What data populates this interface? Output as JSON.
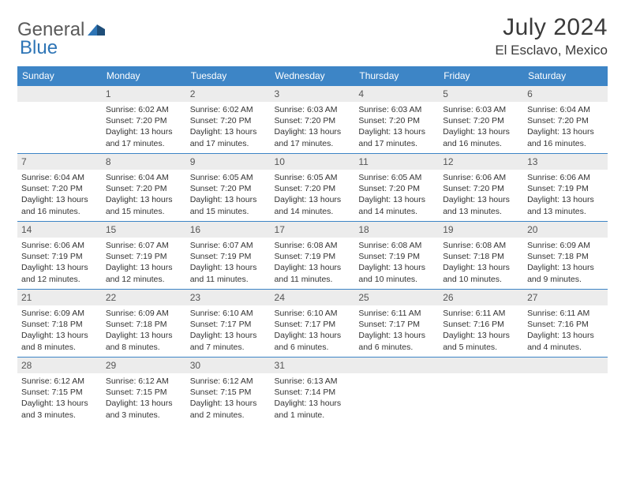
{
  "logo": {
    "general": "General",
    "blue": "Blue"
  },
  "title": "July 2024",
  "location": "El Esclavo, Mexico",
  "weekdays": [
    "Sunday",
    "Monday",
    "Tuesday",
    "Wednesday",
    "Thursday",
    "Friday",
    "Saturday"
  ],
  "colors": {
    "header_bg": "#3d85c6",
    "header_text": "#ffffff",
    "daynum_bg": "#ececec",
    "daynum_text": "#555555",
    "border": "#3d85c6",
    "body_text": "#333333",
    "logo_gray": "#5a5a5a",
    "logo_blue": "#2e75b6"
  },
  "weeks": [
    [
      {
        "num": "",
        "lines": []
      },
      {
        "num": "1",
        "lines": [
          "Sunrise: 6:02 AM",
          "Sunset: 7:20 PM",
          "Daylight: 13 hours",
          "and 17 minutes."
        ]
      },
      {
        "num": "2",
        "lines": [
          "Sunrise: 6:02 AM",
          "Sunset: 7:20 PM",
          "Daylight: 13 hours",
          "and 17 minutes."
        ]
      },
      {
        "num": "3",
        "lines": [
          "Sunrise: 6:03 AM",
          "Sunset: 7:20 PM",
          "Daylight: 13 hours",
          "and 17 minutes."
        ]
      },
      {
        "num": "4",
        "lines": [
          "Sunrise: 6:03 AM",
          "Sunset: 7:20 PM",
          "Daylight: 13 hours",
          "and 17 minutes."
        ]
      },
      {
        "num": "5",
        "lines": [
          "Sunrise: 6:03 AM",
          "Sunset: 7:20 PM",
          "Daylight: 13 hours",
          "and 16 minutes."
        ]
      },
      {
        "num": "6",
        "lines": [
          "Sunrise: 6:04 AM",
          "Sunset: 7:20 PM",
          "Daylight: 13 hours",
          "and 16 minutes."
        ]
      }
    ],
    [
      {
        "num": "7",
        "lines": [
          "Sunrise: 6:04 AM",
          "Sunset: 7:20 PM",
          "Daylight: 13 hours",
          "and 16 minutes."
        ]
      },
      {
        "num": "8",
        "lines": [
          "Sunrise: 6:04 AM",
          "Sunset: 7:20 PM",
          "Daylight: 13 hours",
          "and 15 minutes."
        ]
      },
      {
        "num": "9",
        "lines": [
          "Sunrise: 6:05 AM",
          "Sunset: 7:20 PM",
          "Daylight: 13 hours",
          "and 15 minutes."
        ]
      },
      {
        "num": "10",
        "lines": [
          "Sunrise: 6:05 AM",
          "Sunset: 7:20 PM",
          "Daylight: 13 hours",
          "and 14 minutes."
        ]
      },
      {
        "num": "11",
        "lines": [
          "Sunrise: 6:05 AM",
          "Sunset: 7:20 PM",
          "Daylight: 13 hours",
          "and 14 minutes."
        ]
      },
      {
        "num": "12",
        "lines": [
          "Sunrise: 6:06 AM",
          "Sunset: 7:20 PM",
          "Daylight: 13 hours",
          "and 13 minutes."
        ]
      },
      {
        "num": "13",
        "lines": [
          "Sunrise: 6:06 AM",
          "Sunset: 7:19 PM",
          "Daylight: 13 hours",
          "and 13 minutes."
        ]
      }
    ],
    [
      {
        "num": "14",
        "lines": [
          "Sunrise: 6:06 AM",
          "Sunset: 7:19 PM",
          "Daylight: 13 hours",
          "and 12 minutes."
        ]
      },
      {
        "num": "15",
        "lines": [
          "Sunrise: 6:07 AM",
          "Sunset: 7:19 PM",
          "Daylight: 13 hours",
          "and 12 minutes."
        ]
      },
      {
        "num": "16",
        "lines": [
          "Sunrise: 6:07 AM",
          "Sunset: 7:19 PM",
          "Daylight: 13 hours",
          "and 11 minutes."
        ]
      },
      {
        "num": "17",
        "lines": [
          "Sunrise: 6:08 AM",
          "Sunset: 7:19 PM",
          "Daylight: 13 hours",
          "and 11 minutes."
        ]
      },
      {
        "num": "18",
        "lines": [
          "Sunrise: 6:08 AM",
          "Sunset: 7:19 PM",
          "Daylight: 13 hours",
          "and 10 minutes."
        ]
      },
      {
        "num": "19",
        "lines": [
          "Sunrise: 6:08 AM",
          "Sunset: 7:18 PM",
          "Daylight: 13 hours",
          "and 10 minutes."
        ]
      },
      {
        "num": "20",
        "lines": [
          "Sunrise: 6:09 AM",
          "Sunset: 7:18 PM",
          "Daylight: 13 hours",
          "and 9 minutes."
        ]
      }
    ],
    [
      {
        "num": "21",
        "lines": [
          "Sunrise: 6:09 AM",
          "Sunset: 7:18 PM",
          "Daylight: 13 hours",
          "and 8 minutes."
        ]
      },
      {
        "num": "22",
        "lines": [
          "Sunrise: 6:09 AM",
          "Sunset: 7:18 PM",
          "Daylight: 13 hours",
          "and 8 minutes."
        ]
      },
      {
        "num": "23",
        "lines": [
          "Sunrise: 6:10 AM",
          "Sunset: 7:17 PM",
          "Daylight: 13 hours",
          "and 7 minutes."
        ]
      },
      {
        "num": "24",
        "lines": [
          "Sunrise: 6:10 AM",
          "Sunset: 7:17 PM",
          "Daylight: 13 hours",
          "and 6 minutes."
        ]
      },
      {
        "num": "25",
        "lines": [
          "Sunrise: 6:11 AM",
          "Sunset: 7:17 PM",
          "Daylight: 13 hours",
          "and 6 minutes."
        ]
      },
      {
        "num": "26",
        "lines": [
          "Sunrise: 6:11 AM",
          "Sunset: 7:16 PM",
          "Daylight: 13 hours",
          "and 5 minutes."
        ]
      },
      {
        "num": "27",
        "lines": [
          "Sunrise: 6:11 AM",
          "Sunset: 7:16 PM",
          "Daylight: 13 hours",
          "and 4 minutes."
        ]
      }
    ],
    [
      {
        "num": "28",
        "lines": [
          "Sunrise: 6:12 AM",
          "Sunset: 7:15 PM",
          "Daylight: 13 hours",
          "and 3 minutes."
        ]
      },
      {
        "num": "29",
        "lines": [
          "Sunrise: 6:12 AM",
          "Sunset: 7:15 PM",
          "Daylight: 13 hours",
          "and 3 minutes."
        ]
      },
      {
        "num": "30",
        "lines": [
          "Sunrise: 6:12 AM",
          "Sunset: 7:15 PM",
          "Daylight: 13 hours",
          "and 2 minutes."
        ]
      },
      {
        "num": "31",
        "lines": [
          "Sunrise: 6:13 AM",
          "Sunset: 7:14 PM",
          "Daylight: 13 hours",
          "and 1 minute."
        ]
      },
      {
        "num": "",
        "lines": []
      },
      {
        "num": "",
        "lines": []
      },
      {
        "num": "",
        "lines": []
      }
    ]
  ]
}
